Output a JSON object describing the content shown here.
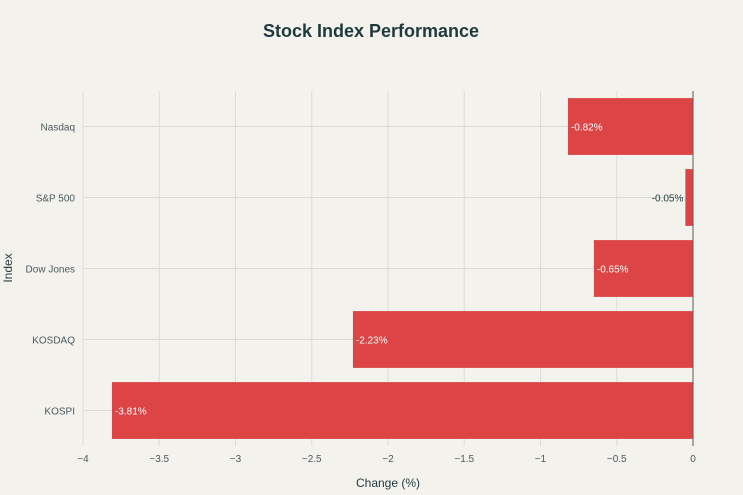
{
  "chart_data": {
    "type": "bar",
    "orientation": "horizontal",
    "title": "Stock Index Performance",
    "xlabel": "Change (%)",
    "ylabel": "Index",
    "categories": [
      "Nasdaq",
      "S&P 500",
      "Dow Jones",
      "KOSDAQ",
      "KOSPI"
    ],
    "values": [
      -0.82,
      -0.05,
      -0.65,
      -2.23,
      -3.81
    ],
    "data_labels": [
      "-0.82%",
      "-0.05%",
      "-0.65%",
      "-2.23%",
      "-3.81%"
    ],
    "xlim": [
      -4,
      0
    ],
    "xticks": [
      -4,
      -3.5,
      -3,
      -2.5,
      -2,
      -1.5,
      -1,
      -0.5,
      0
    ],
    "xtick_labels": [
      "−4",
      "−3.5",
      "−3",
      "−2.5",
      "−2",
      "−1.5",
      "−1",
      "−0.5",
      "0"
    ],
    "grid": true,
    "bar_color": "#dc4446",
    "inside_label_color": "#ffffff",
    "outside_label_color": "#1f3a3f"
  }
}
